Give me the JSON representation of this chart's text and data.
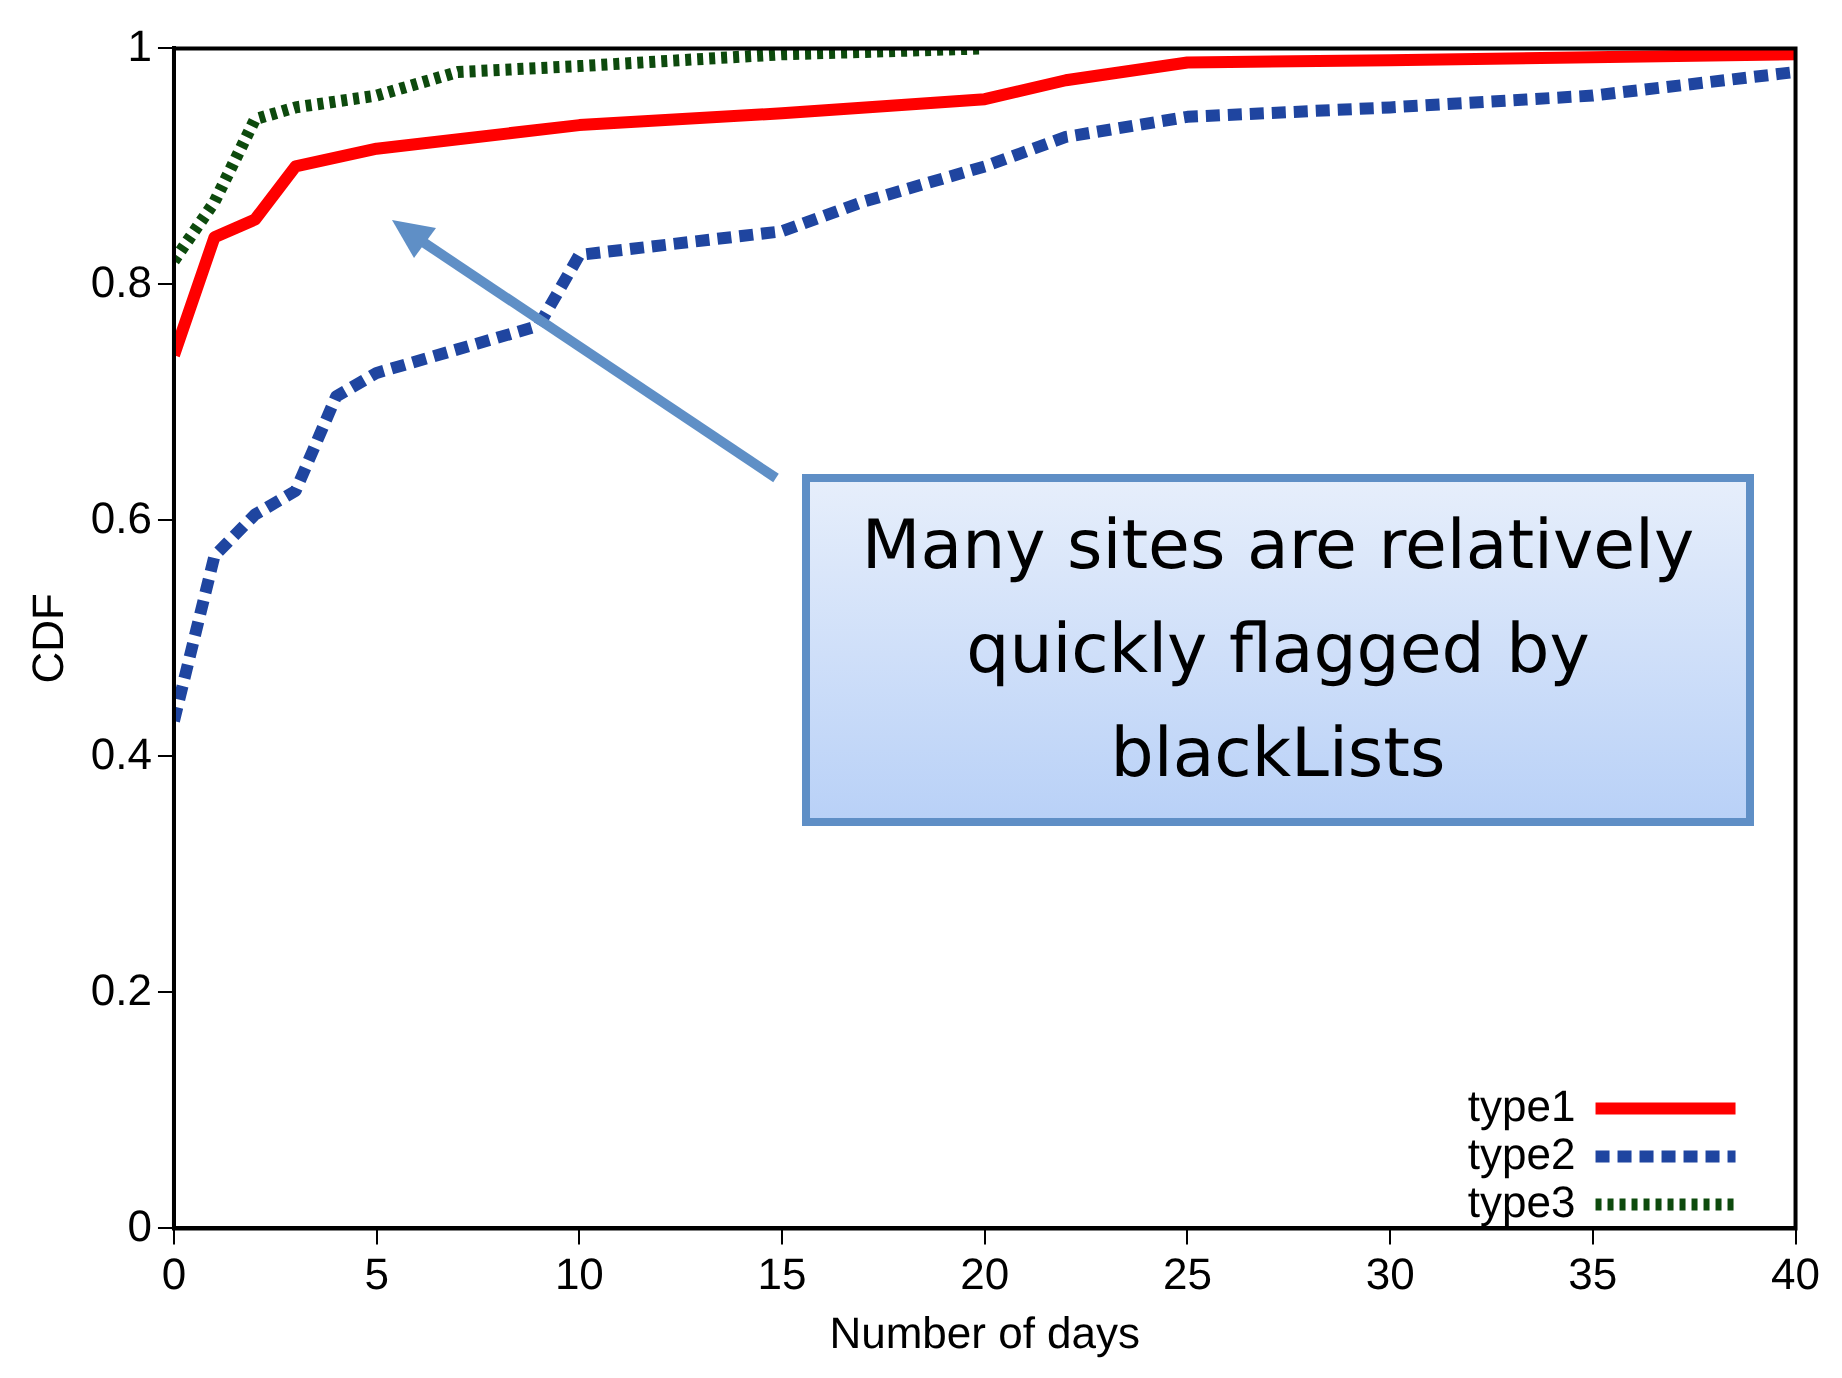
{
  "chart_data": {
    "type": "line",
    "xlabel": "Number of days",
    "ylabel": "CDF",
    "xlim": [
      0,
      40
    ],
    "xticks": [
      0,
      5,
      10,
      15,
      20,
      25,
      30,
      35,
      40
    ],
    "ylim": [
      0,
      1
    ],
    "yticks": [
      0,
      0.2,
      0.4,
      0.6,
      0.8,
      1
    ],
    "grid": false,
    "legend": "bottom right",
    "marker": "none",
    "annotations": [
      "Many sites are relatively quickly flagged by blackLists"
    ],
    "series": [
      {
        "name": "type1",
        "color": "#ff0000",
        "line_style": "solid",
        "x": [
          0,
          1,
          2,
          3,
          5,
          10,
          15,
          20,
          22,
          25,
          30,
          40
        ],
        "values": [
          0.74,
          0.84,
          0.855,
          0.9,
          0.915,
          0.935,
          0.945,
          0.957,
          0.973,
          0.988,
          0.99,
          0.995
        ]
      },
      {
        "name": "type2",
        "color": "#1f45a0",
        "line_style": "dashed",
        "x": [
          0,
          0.5,
          1,
          2,
          3,
          4,
          5,
          9,
          10,
          15,
          17,
          20,
          22,
          25,
          30,
          35,
          40
        ],
        "values": [
          0.43,
          0.5,
          0.57,
          0.605,
          0.625,
          0.705,
          0.725,
          0.765,
          0.825,
          0.845,
          0.87,
          0.9,
          0.925,
          0.942,
          0.95,
          0.96,
          0.98
        ]
      },
      {
        "name": "type3",
        "color": "#0d4a0d",
        "line_style": "dotted",
        "x": [
          0,
          1,
          2,
          3,
          5,
          7,
          10,
          15,
          20
        ],
        "values": [
          0.82,
          0.87,
          0.94,
          0.95,
          0.96,
          0.98,
          0.985,
          0.995,
          1.0
        ]
      }
    ]
  }
}
